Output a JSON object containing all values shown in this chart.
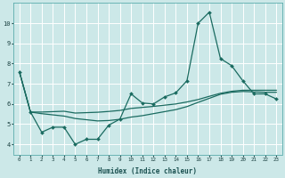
{
  "xlabel": "Humidex (Indice chaleur)",
  "bg_color": "#cce8e8",
  "grid_color": "#ffffff",
  "line_color": "#1a6b60",
  "xlim": [
    -0.5,
    23.5
  ],
  "ylim": [
    3.5,
    11.0
  ],
  "yticks": [
    4,
    5,
    6,
    7,
    8,
    9,
    10
  ],
  "xticks": [
    0,
    1,
    2,
    3,
    4,
    5,
    6,
    7,
    8,
    9,
    10,
    11,
    12,
    13,
    14,
    15,
    16,
    17,
    18,
    19,
    20,
    21,
    22,
    23
  ],
  "line1_x": [
    0,
    1,
    2,
    3,
    4,
    5,
    6,
    7,
    8,
    9,
    10,
    11,
    12,
    13,
    14,
    15,
    16,
    17,
    18,
    19,
    20,
    21,
    22,
    23
  ],
  "line1_y": [
    7.6,
    5.6,
    4.6,
    4.85,
    4.85,
    4.0,
    4.25,
    4.25,
    4.95,
    5.25,
    6.5,
    6.05,
    6.0,
    6.35,
    6.55,
    7.15,
    10.0,
    10.55,
    8.25,
    7.9,
    7.15,
    6.5,
    6.5,
    6.25
  ],
  "line2_x": [
    0,
    1,
    2,
    3,
    4,
    5,
    6,
    7,
    8,
    9,
    10,
    11,
    12,
    13,
    14,
    15,
    16,
    17,
    18,
    19,
    20,
    21,
    22,
    23
  ],
  "line2_y": [
    7.6,
    5.6,
    5.6,
    5.62,
    5.64,
    5.55,
    5.57,
    5.59,
    5.63,
    5.68,
    5.78,
    5.83,
    5.88,
    5.94,
    6.0,
    6.1,
    6.22,
    6.38,
    6.53,
    6.63,
    6.68,
    6.68,
    6.68,
    6.68
  ],
  "line3_x": [
    0,
    1,
    2,
    3,
    4,
    5,
    6,
    7,
    8,
    9,
    10,
    11,
    12,
    13,
    14,
    15,
    16,
    17,
    18,
    19,
    20,
    21,
    22,
    23
  ],
  "line3_y": [
    7.6,
    5.6,
    5.52,
    5.46,
    5.4,
    5.28,
    5.22,
    5.16,
    5.18,
    5.24,
    5.35,
    5.42,
    5.52,
    5.62,
    5.72,
    5.87,
    6.08,
    6.28,
    6.48,
    6.58,
    6.62,
    6.6,
    6.58,
    6.58
  ]
}
